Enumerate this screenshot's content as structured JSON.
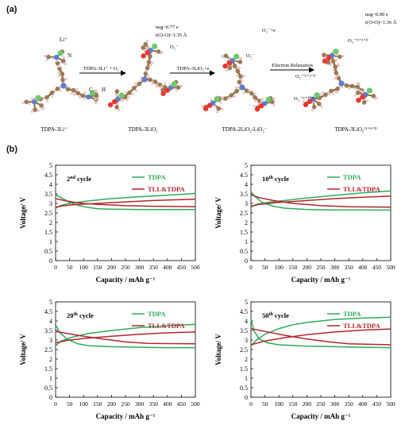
{
  "panel_a": {
    "label": "(a)",
    "molecules": [
      {
        "name": "TDPA-3Li⁺",
        "atom_labels": [
          "Li⁺",
          "N",
          "C",
          "H"
        ]
      },
      {
        "name": "TDPA-3LiO₂",
        "annotations": [
          "neg~0.77 e",
          "r(O-O)~1.35 Å",
          "O₂⁻"
        ]
      },
      {
        "name": "TDPA-2LiO₂-LiO₂⁻",
        "annotations": [
          "O₂⁻+e",
          "O₂⁻"
        ]
      },
      {
        "name": "TDPA-3LiO₂⁽¹⁺¹ᐟ³⁾",
        "annotations": [
          "neg~0.90 e",
          "r(O-O)~1.36 Å",
          "O₂⁻⁽¹⁺¹ᐟ³⁾",
          "O₂⁻⁽¹⁺¹ᐟ³⁾",
          "O₂⁻⁽¹⁺¹ᐟ³⁾"
        ]
      }
    ],
    "arrows": [
      "TDPA-3Li⁺ + O₂⁻",
      "TDPA-3LiO₂+e",
      "Electron Relaxation"
    ]
  },
  "panel_b": {
    "label": "(b)"
  },
  "colors": {
    "tdpa": "#2eaa5a",
    "tll": "#b3262b"
  },
  "chart_data": [
    {
      "type": "line",
      "title": "2nd cycle",
      "xlabel": "Capacity / mAh g⁻¹",
      "ylabel": "Voltage/ V",
      "xlim": [
        0,
        500
      ],
      "ylim": [
        0,
        5
      ],
      "xticks": [
        "0",
        "50",
        "100",
        "150",
        "200",
        "250",
        "300",
        "350",
        "400",
        "450",
        "500"
      ],
      "yticks": [
        "0",
        "0.5",
        "1",
        "1.5",
        "2",
        "2.5",
        "3",
        "3.5",
        "4",
        "4.5",
        "5"
      ],
      "legend": "top-right",
      "series": [
        {
          "name": "TDPA",
          "color": "#2eaa5a",
          "discharge": [
            [
              0,
              3.45
            ],
            [
              20,
              3.3
            ],
            [
              50,
              3.05
            ],
            [
              80,
              2.9
            ],
            [
              110,
              2.8
            ],
            [
              150,
              2.72
            ],
            [
              200,
              2.7
            ],
            [
              300,
              2.68
            ],
            [
              400,
              2.68
            ],
            [
              500,
              2.68
            ]
          ],
          "charge": [
            [
              0,
              2.75
            ],
            [
              20,
              2.9
            ],
            [
              50,
              3.0
            ],
            [
              100,
              3.1
            ],
            [
              150,
              3.18
            ],
            [
              200,
              3.25
            ],
            [
              300,
              3.35
            ],
            [
              400,
              3.43
            ],
            [
              500,
              3.52
            ]
          ]
        },
        {
          "name": "TLL&TDPA",
          "color": "#b3262b",
          "discharge": [
            [
              0,
              3.25
            ],
            [
              30,
              3.15
            ],
            [
              70,
              3.05
            ],
            [
              100,
              3.0
            ],
            [
              150,
              2.95
            ],
            [
              250,
              2.88
            ],
            [
              350,
              2.85
            ],
            [
              500,
              2.83
            ]
          ],
          "charge": [
            [
              0,
              2.8
            ],
            [
              30,
              2.88
            ],
            [
              80,
              2.95
            ],
            [
              150,
              3.0
            ],
            [
              250,
              3.08
            ],
            [
              350,
              3.15
            ],
            [
              450,
              3.2
            ],
            [
              500,
              3.22
            ]
          ]
        }
      ]
    },
    {
      "type": "line",
      "title": "10th cycle",
      "xlabel": "Capacity / mAh g⁻¹",
      "ylabel": "Voltage/ V",
      "xlim": [
        0,
        500
      ],
      "ylim": [
        0,
        5
      ],
      "xticks": [
        "0",
        "50",
        "100",
        "150",
        "200",
        "250",
        "300",
        "350",
        "400",
        "450",
        "500"
      ],
      "yticks": [
        "0",
        "0.5",
        "1",
        "1.5",
        "2",
        "2.5",
        "3",
        "3.5",
        "4",
        "4.5",
        "5"
      ],
      "legend": "top-right",
      "series": [
        {
          "name": "TDPA",
          "color": "#2eaa5a",
          "discharge": [
            [
              0,
              3.6
            ],
            [
              15,
              3.35
            ],
            [
              40,
              3.05
            ],
            [
              80,
              2.85
            ],
            [
              120,
              2.75
            ],
            [
              200,
              2.68
            ],
            [
              300,
              2.65
            ],
            [
              400,
              2.65
            ],
            [
              500,
              2.65
            ]
          ],
          "charge": [
            [
              0,
              2.8
            ],
            [
              20,
              2.95
            ],
            [
              60,
              3.05
            ],
            [
              120,
              3.15
            ],
            [
              200,
              3.28
            ],
            [
              300,
              3.42
            ],
            [
              400,
              3.55
            ],
            [
              500,
              3.65
            ]
          ]
        },
        {
          "name": "TLL&TDPA",
          "color": "#b3262b",
          "discharge": [
            [
              0,
              3.45
            ],
            [
              30,
              3.3
            ],
            [
              80,
              3.15
            ],
            [
              150,
              3.0
            ],
            [
              250,
              2.88
            ],
            [
              350,
              2.82
            ],
            [
              500,
              2.8
            ]
          ],
          "charge": [
            [
              0,
              2.85
            ],
            [
              30,
              2.95
            ],
            [
              100,
              3.05
            ],
            [
              200,
              3.15
            ],
            [
              300,
              3.25
            ],
            [
              400,
              3.32
            ],
            [
              500,
              3.38
            ]
          ]
        }
      ]
    },
    {
      "type": "line",
      "title": "20th cycle",
      "xlabel": "Capacity / mAh g⁻¹",
      "ylabel": "Voltage/ V",
      "xlim": [
        0,
        500
      ],
      "ylim": [
        0,
        5
      ],
      "xticks": [
        "0",
        "50",
        "100",
        "150",
        "200",
        "250",
        "300",
        "350",
        "400",
        "450",
        "500"
      ],
      "yticks": [
        "0",
        "0.5",
        "1",
        "1.5",
        "2",
        "2.5",
        "3",
        "3.5",
        "4",
        "4.5",
        "5"
      ],
      "legend": "top-right",
      "series": [
        {
          "name": "TDPA",
          "color": "#2eaa5a",
          "discharge": [
            [
              0,
              3.8
            ],
            [
              15,
              3.4
            ],
            [
              40,
              3.05
            ],
            [
              80,
              2.8
            ],
            [
              120,
              2.7
            ],
            [
              200,
              2.65
            ],
            [
              300,
              2.62
            ],
            [
              400,
              2.6
            ],
            [
              500,
              2.6
            ]
          ],
          "charge": [
            [
              0,
              2.7
            ],
            [
              20,
              2.95
            ],
            [
              60,
              3.15
            ],
            [
              120,
              3.35
            ],
            [
              200,
              3.5
            ],
            [
              300,
              3.65
            ],
            [
              400,
              3.75
            ],
            [
              500,
              3.82
            ]
          ]
        },
        {
          "name": "TLL&TDPA",
          "color": "#b3262b",
          "discharge": [
            [
              0,
              3.45
            ],
            [
              40,
              3.35
            ],
            [
              100,
              3.2
            ],
            [
              170,
              3.05
            ],
            [
              250,
              2.9
            ],
            [
              330,
              2.82
            ],
            [
              500,
              2.8
            ]
          ],
          "charge": [
            [
              0,
              2.85
            ],
            [
              40,
              2.98
            ],
            [
              100,
              3.08
            ],
            [
              200,
              3.2
            ],
            [
              300,
              3.3
            ],
            [
              400,
              3.38
            ],
            [
              500,
              3.42
            ]
          ]
        }
      ]
    },
    {
      "type": "line",
      "title": "50th cycle",
      "xlabel": "Capacity / mAh g⁻¹",
      "ylabel": "Voltage/ V",
      "xlim": [
        0,
        500
      ],
      "ylim": [
        0,
        5
      ],
      "xticks": [
        "0",
        "50",
        "100",
        "150",
        "200",
        "250",
        "300",
        "350",
        "400",
        "450",
        "500"
      ],
      "yticks": [
        "0",
        "0.5",
        "1",
        "1.5",
        "2",
        "2.5",
        "3",
        "3.5",
        "4",
        "4.5",
        "5"
      ],
      "legend": "top-right",
      "series": [
        {
          "name": "TDPA",
          "color": "#2eaa5a",
          "discharge": [
            [
              0,
              4.1
            ],
            [
              10,
              3.5
            ],
            [
              30,
              3.05
            ],
            [
              60,
              2.85
            ],
            [
              100,
              2.75
            ],
            [
              200,
              2.68
            ],
            [
              300,
              2.65
            ],
            [
              400,
              2.62
            ],
            [
              500,
              2.6
            ]
          ],
          "charge": [
            [
              0,
              2.7
            ],
            [
              20,
              3.0
            ],
            [
              50,
              3.3
            ],
            [
              100,
              3.6
            ],
            [
              150,
              3.8
            ],
            [
              200,
              3.92
            ],
            [
              300,
              4.08
            ],
            [
              400,
              4.15
            ],
            [
              500,
              4.2
            ]
          ]
        },
        {
          "name": "TLL&TDPA",
          "color": "#b3262b",
          "discharge": [
            [
              0,
              3.6
            ],
            [
              50,
              3.45
            ],
            [
              120,
              3.25
            ],
            [
              200,
              3.05
            ],
            [
              280,
              2.9
            ],
            [
              350,
              2.8
            ],
            [
              500,
              2.75
            ]
          ],
          "charge": [
            [
              0,
              2.75
            ],
            [
              50,
              2.95
            ],
            [
              120,
              3.12
            ],
            [
              200,
              3.28
            ],
            [
              300,
              3.42
            ],
            [
              400,
              3.52
            ],
            [
              500,
              3.58
            ]
          ]
        }
      ]
    }
  ]
}
